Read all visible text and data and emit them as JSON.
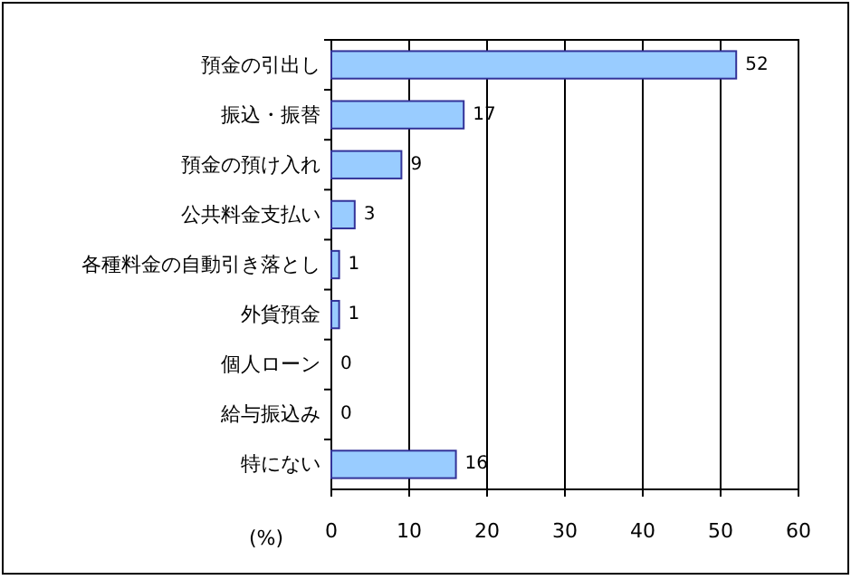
{
  "chart_data": {
    "type": "bar",
    "orientation": "horizontal",
    "xlabel": "(%)",
    "categories": [
      "預金の引出し",
      "振込・振替",
      "預金の預け入れ",
      "公共料金支払い",
      "各種料金の自動引き落とし",
      "外貨預金",
      "個人ローン",
      "給与振込み",
      "特にない"
    ],
    "values": [
      52,
      17,
      9,
      3,
      1,
      1,
      0,
      0,
      16
    ],
    "color": "#99ccff",
    "xlim": [
      0,
      60
    ],
    "xticks": [
      0,
      10,
      20,
      30,
      40,
      50,
      60
    ],
    "grid": "x",
    "data_labels": true
  }
}
